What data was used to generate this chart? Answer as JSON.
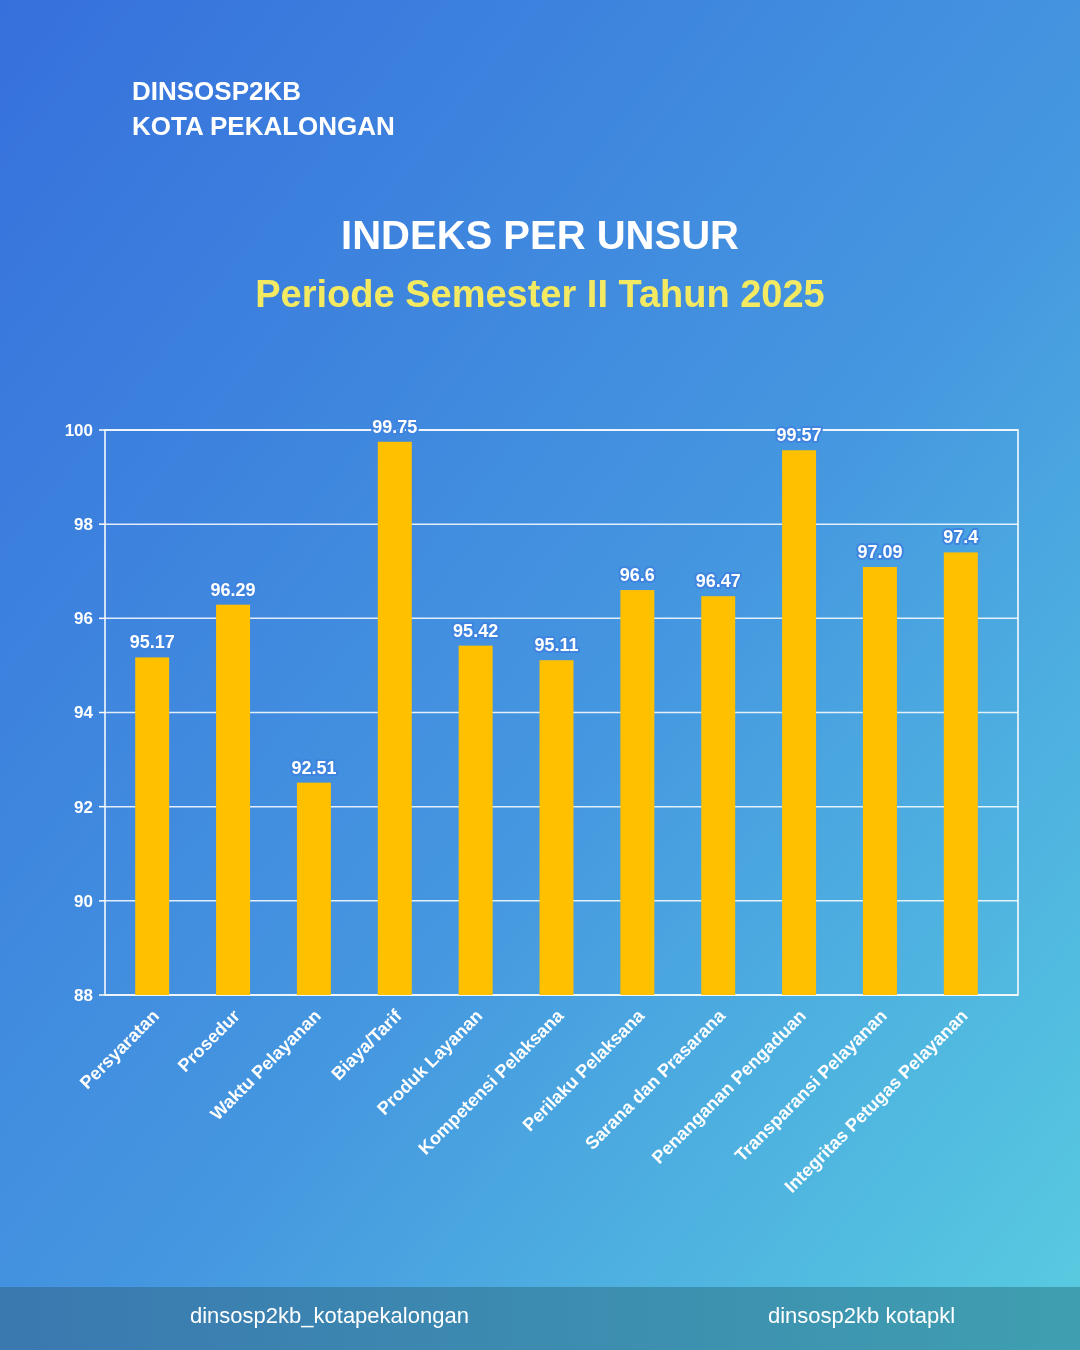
{
  "chart_data": {
    "type": "bar",
    "title": "INDEKS PER UNSUR",
    "subtitle": "Periode Semester II Tahun 2025",
    "categories": [
      "Persyaratan",
      "Prosedur",
      "Waktu Pelayanan",
      "Biaya/Tarif",
      "Produk Layanan",
      "Kompetensi Pelaksana",
      "Perilaku Pelaksana",
      "Sarana dan Prasarana",
      "Penanganan Pengaduan",
      "Transparansi Pelayanan",
      "Integritas Petugas Pelayanan"
    ],
    "values": [
      95.17,
      96.29,
      92.51,
      99.75,
      95.42,
      95.11,
      96.6,
      96.47,
      99.57,
      97.09,
      97.4
    ],
    "color": "#ffc000",
    "ylim": [
      88,
      100
    ],
    "yticks": [
      88,
      90,
      92,
      94,
      96,
      98,
      100
    ],
    "grid": "y",
    "data_labels": true,
    "annotations": [
      "DINSOSP2KB",
      "KOTA PEKALONGAN",
      "dinsosp2kb_kotapekalongan",
      "dinsosp2kb kotapkl"
    ]
  }
}
